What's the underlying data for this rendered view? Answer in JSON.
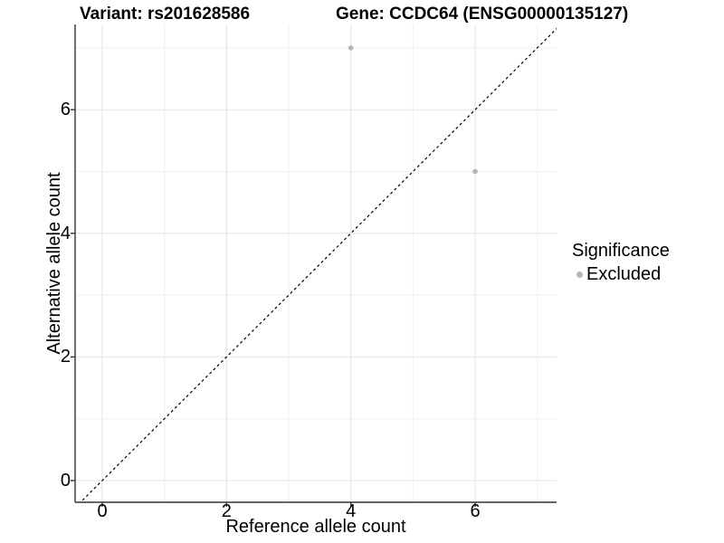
{
  "chart_data": {
    "type": "scatter",
    "titles": {
      "left": "Variant: rs201628586",
      "right": "Gene: CCDC64 (ENSG00000135127)"
    },
    "xlabel": "Reference allele count",
    "ylabel": "Alternative allele count",
    "xticks": [
      0,
      2,
      4,
      6
    ],
    "yticks": [
      0,
      2,
      4,
      6
    ],
    "minor_xticks": [
      1,
      3,
      5,
      7
    ],
    "minor_yticks": [
      1,
      3,
      5,
      7
    ],
    "xlim": [
      -0.45,
      7.32
    ],
    "ylim": [
      -0.35,
      7.42
    ],
    "grid": "major+minor",
    "reference_line": {
      "style": "dashed",
      "slope": 1,
      "intercept": 0,
      "color": "#000000"
    },
    "series": [
      {
        "name": "Excluded",
        "color": "#b5b5b5",
        "points": [
          {
            "x": 4,
            "y": 7
          },
          {
            "x": 6,
            "y": 5
          }
        ]
      }
    ],
    "legend": {
      "title": "Significance",
      "position": "right",
      "items": [
        {
          "label": "Excluded",
          "color": "#b5b5b5"
        }
      ]
    },
    "style": {
      "major_grid_color": "#e4e4e4",
      "minor_grid_color": "#efefef",
      "axis_line_color": "#333333",
      "point_radius": 2.8
    }
  }
}
